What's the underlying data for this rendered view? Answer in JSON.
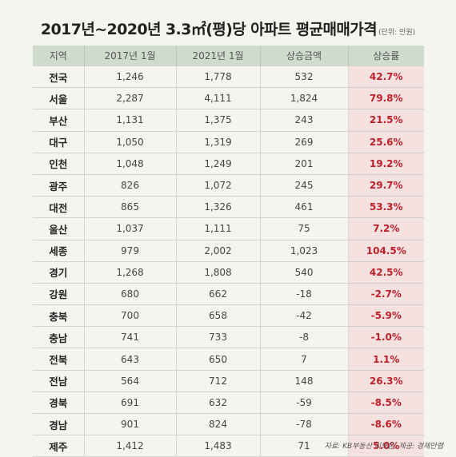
{
  "title": {
    "main": "2017년~2020년 3.3㎡(평)당 아파트 평균매매가격",
    "unit": "(단위: 만원)"
  },
  "table": {
    "headers": [
      "지역",
      "2017년 1월",
      "2021년 1월",
      "상승금액",
      "상승률"
    ],
    "rows": [
      [
        "전국",
        "1,246",
        "1,778",
        "532",
        "42.7%"
      ],
      [
        "서울",
        "2,287",
        "4,111",
        "1,824",
        "79.8%"
      ],
      [
        "부산",
        "1,131",
        "1,375",
        "243",
        "21.5%"
      ],
      [
        "대구",
        "1,050",
        "1,319",
        "269",
        "25.6%"
      ],
      [
        "인천",
        "1,048",
        "1,249",
        "201",
        "19.2%"
      ],
      [
        "광주",
        "826",
        "1,072",
        "245",
        "29.7%"
      ],
      [
        "대전",
        "865",
        "1,326",
        "461",
        "53.3%"
      ],
      [
        "울산",
        "1,037",
        "1,111",
        "75",
        "7.2%"
      ],
      [
        "세종",
        "979",
        "2,002",
        "1,023",
        "104.5%"
      ],
      [
        "경기",
        "1,268",
        "1,808",
        "540",
        "42.5%"
      ],
      [
        "강원",
        "680",
        "662",
        "-18",
        "-2.7%"
      ],
      [
        "충북",
        "700",
        "658",
        "-42",
        "-5.9%"
      ],
      [
        "충남",
        "741",
        "733",
        "-8",
        "-1.0%"
      ],
      [
        "전북",
        "643",
        "650",
        "7",
        "1.1%"
      ],
      [
        "전남",
        "564",
        "712",
        "148",
        "26.3%"
      ],
      [
        "경북",
        "691",
        "632",
        "-59",
        "-8.5%"
      ],
      [
        "경남",
        "901",
        "824",
        "-78",
        "-8.6%"
      ],
      [
        "제주",
        "1,412",
        "1,483",
        "71",
        "5.0%"
      ]
    ]
  },
  "source": "자료: KB부동산 리브온, 제공: 경제만랩",
  "colors": {
    "header_bg": "#cfdccd",
    "rate_text": "#c01f28",
    "rate_bg": "#f6e1e1",
    "page_bg": "#f6f4ef"
  }
}
